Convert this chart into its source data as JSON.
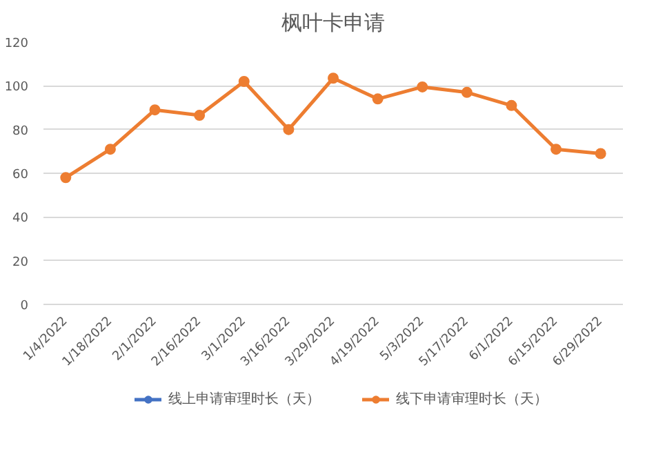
{
  "chart_data": {
    "type": "line",
    "title": "枫叶卡申请",
    "categories": [
      "1/4/2022",
      "1/18/2022",
      "2/1/2022",
      "2/16/2022",
      "3/1/2022",
      "3/16/2022",
      "3/29/2022",
      "4/19/2022",
      "5/3/2022",
      "5/17/2022",
      "6/1/2022",
      "6/15/2022",
      "6/29/2022"
    ],
    "series": [
      {
        "name": "线上申请审理时长（天）",
        "color": "#4472c4",
        "values": [
          null,
          null,
          null,
          null,
          null,
          null,
          null,
          null,
          null,
          null,
          null,
          null,
          null
        ]
      },
      {
        "name": "线下申请审理时长（天）",
        "color": "#ed7d31",
        "values": [
          58,
          71,
          89,
          86.5,
          102,
          80,
          103.5,
          94,
          99.5,
          97,
          91,
          71,
          69
        ]
      }
    ],
    "ylim": [
      0,
      120
    ],
    "yticks": [
      0,
      20,
      40,
      60,
      80,
      100,
      120
    ],
    "grid": "y",
    "legend": "bottom",
    "marker": "circle",
    "line_style": "solid"
  }
}
